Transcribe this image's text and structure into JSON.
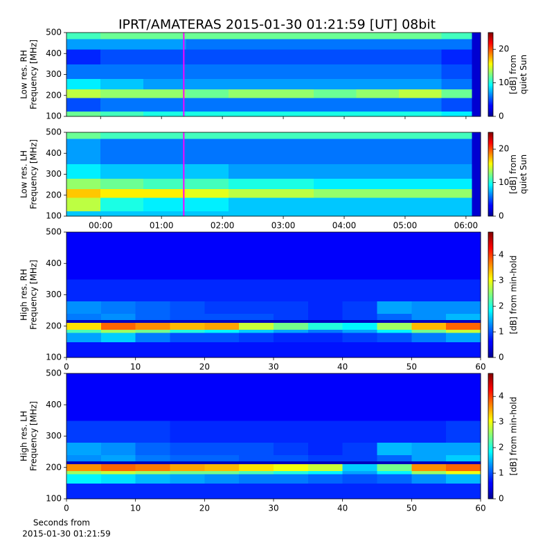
{
  "chart_data": [
    {
      "type": "heatmap",
      "title": "IPRT/AMATERAS 2015-01-30 01:21:59 [UT]   08bit",
      "ylabel": [
        "Low res. RH",
        "Frequency [MHz]"
      ],
      "colorbar_label": [
        "[dB] from",
        "quiet Sun"
      ],
      "colormap": "jet",
      "clim": [
        0,
        25
      ],
      "cticks": [
        0,
        10,
        20
      ],
      "xlim": [
        -0.56,
        6.24
      ],
      "xticks": [
        0,
        1,
        2,
        3,
        4,
        5,
        6
      ],
      "ylim": [
        100,
        500
      ],
      "yticks": [
        100,
        200,
        300,
        400,
        500
      ],
      "marker_x": 1.366,
      "marker_color": "#ff00ff",
      "xbins": [
        -0.56,
        0,
        0.7,
        1.4,
        2.1,
        2.8,
        3.5,
        4.2,
        4.9,
        5.6,
        6.1,
        6.24
      ],
      "ybins": [
        100,
        125,
        190,
        230,
        280,
        350,
        420,
        470,
        500
      ],
      "z": [
        [
          12,
          11,
          10,
          10,
          10,
          10,
          10,
          10,
          10,
          9,
          2
        ],
        [
          5,
          6,
          6,
          6,
          6,
          6,
          6,
          6,
          6,
          5,
          2
        ],
        [
          14,
          13,
          13,
          12,
          13,
          13,
          12,
          13,
          14,
          12,
          2
        ],
        [
          9,
          8,
          7,
          7,
          7,
          7,
          7,
          7,
          7,
          6,
          2
        ],
        [
          6,
          6,
          6,
          6,
          6,
          6,
          6,
          6,
          6,
          5,
          2
        ],
        [
          4,
          5,
          5,
          5,
          5,
          5,
          5,
          5,
          5,
          4,
          2
        ],
        [
          7,
          7,
          7,
          6,
          6,
          6,
          6,
          6,
          6,
          6,
          2
        ],
        [
          11,
          12,
          12,
          12,
          12,
          12,
          12,
          12,
          12,
          11,
          2
        ]
      ]
    },
    {
      "type": "heatmap",
      "ylabel": [
        "Low res. LH",
        "Frequency [MHz]"
      ],
      "colorbar_label": [
        "[dB] from",
        "quiet Sun"
      ],
      "colormap": "jet",
      "clim": [
        0,
        25
      ],
      "cticks": [
        0,
        10,
        20
      ],
      "xlim": [
        -0.56,
        6.24
      ],
      "xticks": [
        {
          "value": 0,
          "label": "00:00"
        },
        {
          "value": 1,
          "label": "01:00"
        },
        {
          "value": 2,
          "label": "02:00"
        },
        {
          "value": 3,
          "label": "03:00"
        },
        {
          "value": 4,
          "label": "04:00"
        },
        {
          "value": 5,
          "label": "05:00"
        },
        {
          "value": 6,
          "label": "06:00"
        }
      ],
      "ylim": [
        100,
        500
      ],
      "yticks": [
        100,
        200,
        300,
        400,
        500
      ],
      "marker_x": 1.366,
      "marker_color": "#ff00ff",
      "xbins": [
        -0.56,
        0,
        0.7,
        1.4,
        2.1,
        2.8,
        3.5,
        4.2,
        4.9,
        5.6,
        6.1,
        6.24
      ],
      "ybins": [
        100,
        125,
        190,
        230,
        280,
        350,
        420,
        470,
        500
      ],
      "z": [
        [
          8,
          8,
          8,
          8,
          8,
          8,
          8,
          8,
          8,
          8,
          2
        ],
        [
          14,
          10,
          9,
          9,
          8,
          8,
          8,
          8,
          8,
          8,
          2
        ],
        [
          17,
          16,
          16,
          15,
          14,
          14,
          13,
          13,
          13,
          13,
          2
        ],
        [
          13,
          12,
          11,
          11,
          10,
          10,
          9,
          9,
          9,
          9,
          2
        ],
        [
          9,
          8,
          8,
          8,
          7,
          7,
          7,
          7,
          7,
          7,
          2
        ],
        [
          7,
          6,
          6,
          6,
          6,
          6,
          6,
          6,
          6,
          6,
          2
        ],
        [
          7,
          6,
          6,
          6,
          6,
          6,
          6,
          6,
          6,
          6,
          2
        ],
        [
          12,
          11,
          11,
          11,
          11,
          11,
          11,
          11,
          11,
          11,
          2
        ]
      ]
    },
    {
      "type": "heatmap",
      "ylabel": [
        "High res. RH",
        "Frequency [MHz]"
      ],
      "colorbar_label": [
        "[dB] from min-hold"
      ],
      "colormap": "jet",
      "clim": [
        0,
        4.9
      ],
      "cticks": [
        0,
        1,
        2,
        3,
        4
      ],
      "xlim": [
        0,
        60
      ],
      "xticks": [
        0,
        10,
        20,
        30,
        40,
        50,
        60
      ],
      "ylim": [
        100,
        500
      ],
      "yticks": [
        100,
        200,
        300,
        400,
        500
      ],
      "xbins": [
        0,
        5,
        10,
        15,
        20,
        25,
        30,
        35,
        40,
        45,
        50,
        55,
        60
      ],
      "ybins": [
        100,
        150,
        180,
        190,
        212,
        220,
        240,
        280,
        350,
        500
      ],
      "z": [
        [
          0.7,
          0.7,
          0.7,
          0.7,
          0.7,
          0.7,
          0.7,
          0.7,
          0.7,
          0.7,
          0.7,
          0.7
        ],
        [
          1.4,
          1.6,
          1.2,
          1.0,
          1.0,
          0.9,
          0.8,
          0.8,
          0.9,
          1.0,
          1.2,
          1.4
        ],
        [
          2.2,
          2.6,
          2.4,
          2.0,
          1.8,
          1.6,
          1.4,
          1.2,
          1.4,
          1.8,
          2.4,
          2.8
        ],
        [
          3.2,
          3.8,
          3.6,
          3.4,
          3.5,
          2.8,
          2.4,
          2.0,
          1.8,
          2.6,
          3.4,
          3.8
        ],
        [
          0.3,
          0.3,
          0.3,
          0.3,
          0.3,
          0.3,
          0.3,
          0.3,
          0.3,
          0.3,
          0.3,
          0.3
        ],
        [
          1.2,
          1.3,
          1.1,
          1.0,
          1.0,
          1.0,
          0.9,
          0.8,
          0.9,
          1.1,
          1.3,
          1.5
        ],
        [
          1.3,
          1.2,
          1.1,
          1.0,
          0.9,
          0.9,
          0.9,
          0.8,
          0.9,
          1.4,
          1.3,
          1.3
        ],
        [
          0.8,
          0.8,
          0.8,
          0.8,
          0.8,
          0.8,
          0.8,
          0.8,
          0.8,
          0.8,
          0.8,
          0.8
        ],
        [
          0.6,
          0.6,
          0.6,
          0.6,
          0.6,
          0.6,
          0.6,
          0.6,
          0.6,
          0.6,
          0.6,
          0.6
        ]
      ]
    },
    {
      "type": "heatmap",
      "ylabel": [
        "High res. LH",
        "Frequency [MHz]"
      ],
      "colorbar_label": [
        "[dB] from min-hold"
      ],
      "xlabel": [
        "Seconds from",
        "2015-01-30 01:21:59"
      ],
      "colormap": "jet",
      "clim": [
        0,
        4.9
      ],
      "cticks": [
        0,
        1,
        2,
        3,
        4
      ],
      "xlim": [
        0,
        60
      ],
      "xticks": [
        0,
        10,
        20,
        30,
        40,
        50,
        60
      ],
      "ylim": [
        100,
        500
      ],
      "yticks": [
        100,
        200,
        300,
        400,
        500
      ],
      "xbins": [
        0,
        5,
        10,
        15,
        20,
        25,
        30,
        35,
        40,
        45,
        50,
        55,
        60
      ],
      "ybins": [
        100,
        150,
        180,
        190,
        212,
        220,
        240,
        280,
        350,
        500
      ],
      "z": [
        [
          0.8,
          0.8,
          0.8,
          0.8,
          0.8,
          0.8,
          0.8,
          0.8,
          0.8,
          0.8,
          0.8,
          0.8
        ],
        [
          1.8,
          1.7,
          1.5,
          1.4,
          1.3,
          1.2,
          1.2,
          1.1,
          1.0,
          1.1,
          1.3,
          1.5
        ],
        [
          2.6,
          2.8,
          2.6,
          2.4,
          2.4,
          2.2,
          2.0,
          1.8,
          1.4,
          1.8,
          2.6,
          3.0
        ],
        [
          3.6,
          3.8,
          3.7,
          3.5,
          3.4,
          3.2,
          3.0,
          2.8,
          1.6,
          2.4,
          3.6,
          3.8
        ],
        [
          0.3,
          0.3,
          0.3,
          0.3,
          0.3,
          0.3,
          0.3,
          0.3,
          0.3,
          0.3,
          0.3,
          0.3
        ],
        [
          1.3,
          1.4,
          1.2,
          1.1,
          1.1,
          1.0,
          1.0,
          0.9,
          0.9,
          1.1,
          1.4,
          1.6
        ],
        [
          1.4,
          1.3,
          1.1,
          1.0,
          1.0,
          1.0,
          0.9,
          0.8,
          0.9,
          1.5,
          1.4,
          1.4
        ],
        [
          0.9,
          0.9,
          0.9,
          0.8,
          0.8,
          0.8,
          0.8,
          0.8,
          0.8,
          0.8,
          0.8,
          0.9
        ],
        [
          0.6,
          0.6,
          0.6,
          0.6,
          0.6,
          0.6,
          0.6,
          0.6,
          0.6,
          0.6,
          0.6,
          0.6
        ]
      ]
    }
  ]
}
